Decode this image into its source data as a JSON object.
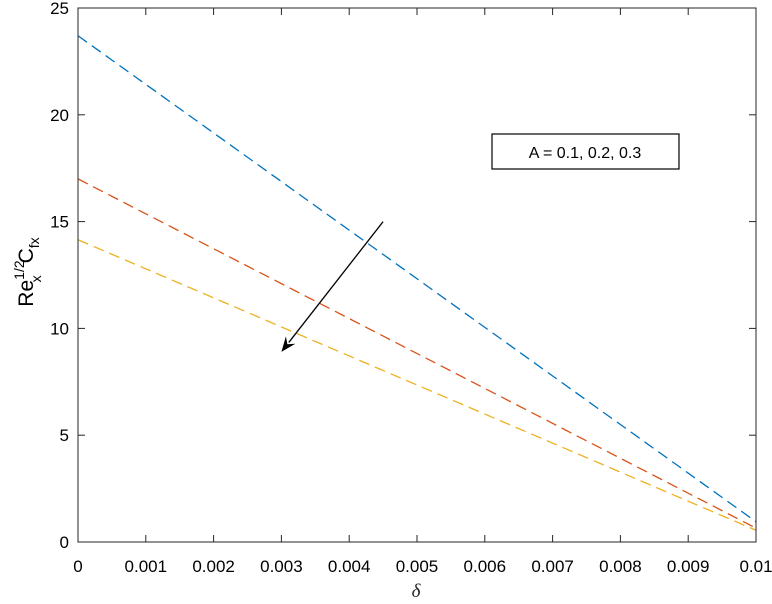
{
  "chart_data": {
    "type": "line",
    "title": "",
    "xlabel": "δ",
    "ylabel": {
      "base": "Re",
      "base_sub": "x",
      "base_sup": "1/2",
      "coef": "C",
      "coef_sub": "fx"
    },
    "xlim": [
      0,
      0.01
    ],
    "ylim": [
      0,
      25
    ],
    "xticks": [
      0,
      0.001,
      0.002,
      0.003,
      0.004,
      0.005,
      0.006,
      0.007,
      0.008,
      0.009,
      0.01
    ],
    "xtick_labels": [
      "0",
      "0.001",
      "0.002",
      "0.003",
      "0.004",
      "0.005",
      "0.006",
      "0.007",
      "0.008",
      "0.009",
      "0.01"
    ],
    "yticks": [
      0,
      5,
      10,
      15,
      20,
      25
    ],
    "ytick_labels": [
      "0",
      "5",
      "10",
      "15",
      "20",
      "25"
    ],
    "grid": false,
    "line_style": "dashed",
    "series": [
      {
        "color": "#0072BD",
        "x": [
          0,
          0.01
        ],
        "y": [
          23.7,
          0.95
        ]
      },
      {
        "color": "#D95319",
        "x": [
          0,
          0.01
        ],
        "y": [
          17.0,
          0.65
        ]
      },
      {
        "color": "#EDB120",
        "x": [
          0,
          0.01
        ],
        "y": [
          14.15,
          0.55
        ]
      }
    ],
    "annotation": {
      "text": "A = 0.1, 0.2, 0.3",
      "arrow_from": [
        0.0045,
        15.0
      ],
      "arrow_to": [
        0.003,
        8.9
      ]
    }
  }
}
